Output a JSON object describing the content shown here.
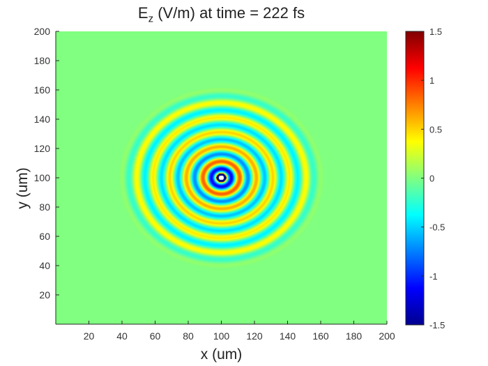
{
  "chart_data": {
    "type": "heatmap",
    "title_main": "E",
    "title_sub": "z",
    "title_rest": " (V/m) at time = 222 fs",
    "xlabel": "x (um)",
    "ylabel": "y (um)",
    "xlim": [
      0,
      200
    ],
    "ylim": [
      0,
      200
    ],
    "xticks": [
      20,
      40,
      60,
      80,
      100,
      120,
      140,
      160,
      180,
      200
    ],
    "yticks": [
      20,
      40,
      60,
      80,
      100,
      120,
      140,
      160,
      180,
      200
    ],
    "colorbar": {
      "colormap": "jet",
      "range": [
        -1.5,
        1.5
      ],
      "ticks": [
        1.5,
        1,
        0.5,
        0,
        -0.5,
        -1,
        -1.5
      ],
      "tick_labels": [
        "1.5",
        "1",
        "0.5",
        "0",
        "-0.5",
        "-1",
        "-1.5"
      ]
    },
    "field": {
      "description": "concentric circular wave centered on source",
      "center": [
        100,
        100
      ],
      "wavelength_um": 10,
      "outer_radius_um": 62,
      "source_radius_um": 3,
      "peak_amplitude": 1.5
    }
  }
}
